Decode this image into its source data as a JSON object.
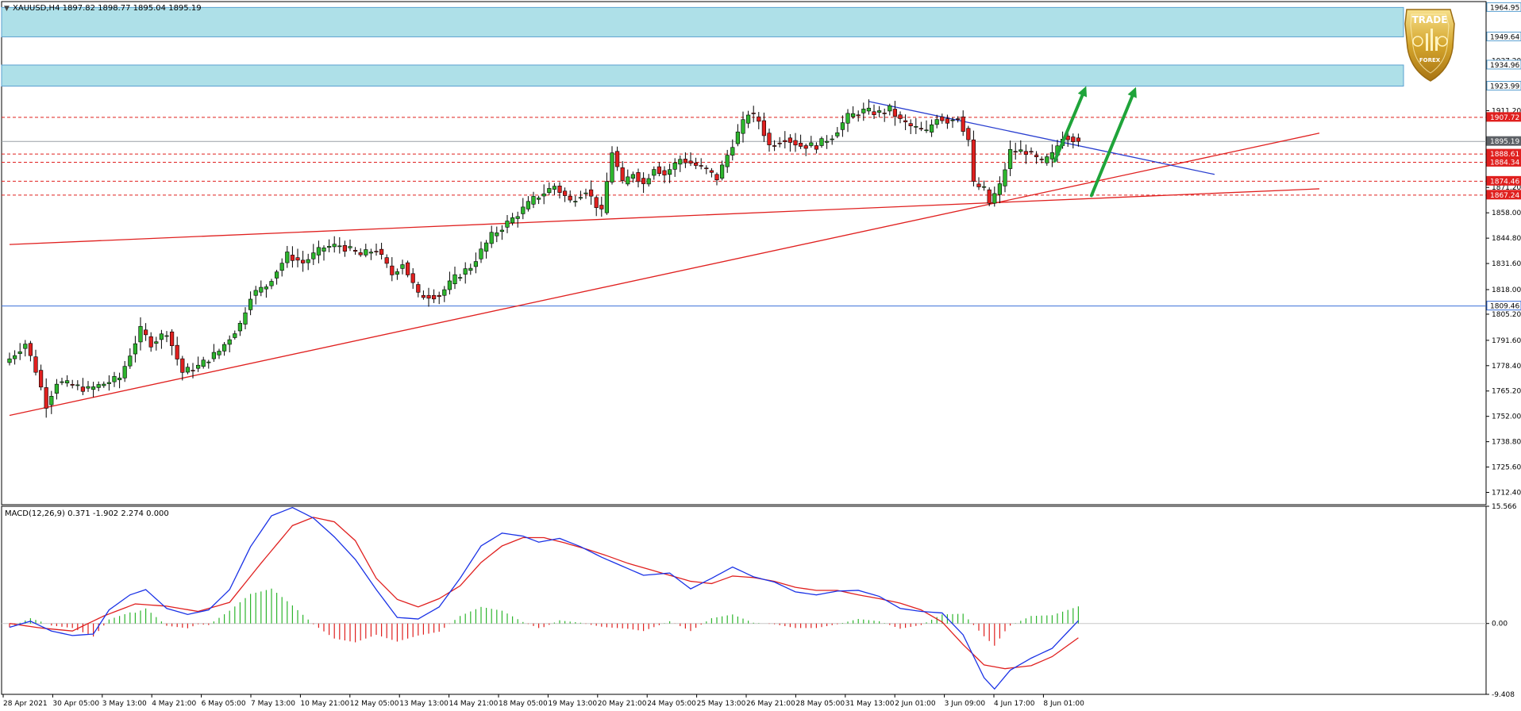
{
  "header": {
    "symbol_line": "XAUUSD,H4  1897.82 1898.77 1895.04 1895.19",
    "macd_line": "MACD(12,26,9) 0.371 -1.902 2.274 0.000"
  },
  "logo": {
    "text_top": "TRADE",
    "text_bottom": "FOREX"
  },
  "colors": {
    "bull": "#2db52d",
    "bear": "#e0201f",
    "zone_fill": "#aee0e8",
    "zone_border": "#5aa0d0",
    "hline_red": "#e0201f",
    "hline_blue": "#3a6fd8",
    "trend_red": "#e0201f",
    "trend_blue": "#2a3fd0",
    "arrow": "#1fa43a",
    "macd_line": "#1a32e6",
    "signal_line": "#e0201f",
    "axis": "#000000"
  },
  "chart_data": [
    {
      "type": "candlestick",
      "title": "XAUUSD,H4",
      "ylim": [
        1706,
        1968
      ],
      "y_ticks": [
        1712.4,
        1725.6,
        1738.8,
        1752.0,
        1765.2,
        1778.4,
        1791.6,
        1805.2,
        1818.0,
        1831.6,
        1844.8,
        1858.0,
        1871.2,
        1911.2,
        1937.2
      ],
      "x_tick_labels": [
        "28 Apr 2021",
        "30 Apr 05:00",
        "3 May 13:00",
        "4 May 21:00",
        "6 May 05:00",
        "7 May 13:00",
        "10 May 21:00",
        "12 May 05:00",
        "13 May 13:00",
        "14 May 21:00",
        "18 May 05:00",
        "19 May 13:00",
        "20 May 21:00",
        "24 May 05:00",
        "25 May 13:00",
        "26 May 21:00",
        "28 May 05:00",
        "31 May 13:00",
        "2 Jun 01:00",
        "3 Jun 09:00",
        "4 Jun 17:00",
        "8 Jun 01:00"
      ],
      "series_anchor_closes": [
        [
          0,
          1782
        ],
        [
          3,
          1790
        ],
        [
          5,
          1776
        ],
        [
          7,
          1758
        ],
        [
          9,
          1770
        ],
        [
          15,
          1766
        ],
        [
          21,
          1772
        ],
        [
          25,
          1797
        ],
        [
          27,
          1790
        ],
        [
          30,
          1796
        ],
        [
          33,
          1775
        ],
        [
          36,
          1778
        ],
        [
          40,
          1786
        ],
        [
          44,
          1800
        ],
        [
          46,
          1815
        ],
        [
          49,
          1820
        ],
        [
          53,
          1836
        ],
        [
          56,
          1832
        ],
        [
          60,
          1840
        ],
        [
          63,
          1841
        ],
        [
          67,
          1836
        ],
        [
          70,
          1839
        ],
        [
          73,
          1826
        ],
        [
          75,
          1832
        ],
        [
          78,
          1815
        ],
        [
          82,
          1815
        ],
        [
          85,
          1824
        ],
        [
          88,
          1830
        ],
        [
          92,
          1846
        ],
        [
          96,
          1855
        ],
        [
          100,
          1865
        ],
        [
          104,
          1872
        ],
        [
          107,
          1864
        ],
        [
          110,
          1870
        ],
        [
          113,
          1858
        ],
        [
          115,
          1890
        ],
        [
          117,
          1873
        ],
        [
          119,
          1879
        ],
        [
          121,
          1873
        ],
        [
          123,
          1882
        ],
        [
          125,
          1878
        ],
        [
          128,
          1886
        ],
        [
          130,
          1884
        ],
        [
          133,
          1880
        ],
        [
          135,
          1876
        ],
        [
          138,
          1894
        ],
        [
          141,
          1910
        ],
        [
          143,
          1906
        ],
        [
          145,
          1893
        ],
        [
          148,
          1897
        ],
        [
          151,
          1893
        ],
        [
          154,
          1893
        ],
        [
          157,
          1898
        ],
        [
          160,
          1908
        ],
        [
          163,
          1911
        ],
        [
          166,
          1910
        ],
        [
          168,
          1912
        ],
        [
          170,
          1906
        ],
        [
          172,
          1903
        ],
        [
          175,
          1900
        ],
        [
          177,
          1908
        ],
        [
          179,
          1906
        ],
        [
          181,
          1908
        ],
        [
          183,
          1896
        ],
        [
          184,
          1873
        ],
        [
          186,
          1870
        ],
        [
          187,
          1863
        ],
        [
          189,
          1872
        ],
        [
          191,
          1890
        ],
        [
          194,
          1890
        ],
        [
          197,
          1884
        ],
        [
          199,
          1888
        ],
        [
          201,
          1898
        ],
        [
          203,
          1897
        ],
        [
          204,
          1895.19
        ]
      ],
      "horizontal_levels": [
        {
          "value": 1907.72,
          "style": "dashed",
          "color": "red"
        },
        {
          "value": 1895.19,
          "style": "solid",
          "color": "gray",
          "label": "current"
        },
        {
          "value": 1888.61,
          "style": "dashed",
          "color": "red"
        },
        {
          "value": 1884.34,
          "style": "dashed",
          "color": "red"
        },
        {
          "value": 1874.46,
          "style": "dashed",
          "color": "red"
        },
        {
          "value": 1867.24,
          "style": "dashed",
          "color": "red"
        },
        {
          "value": 1809.46,
          "style": "solid",
          "color": "blue"
        }
      ],
      "price_tags": [
        {
          "value": 1964.95,
          "text": "1964.95",
          "kind": "zone"
        },
        {
          "value": 1949.64,
          "text": "1949.64",
          "kind": "zone"
        },
        {
          "value": 1934.96,
          "text": "1934.96",
          "kind": "zone"
        },
        {
          "value": 1923.99,
          "text": "1923.99",
          "kind": "zone"
        },
        {
          "value": 1907.72,
          "text": "1907.72",
          "kind": "red"
        },
        {
          "value": 1895.19,
          "text": "1895.19",
          "kind": "current"
        },
        {
          "value": 1888.61,
          "text": "1888.61",
          "kind": "red"
        },
        {
          "value": 1884.34,
          "text": "1884.34",
          "kind": "red"
        },
        {
          "value": 1874.46,
          "text": "1874.46",
          "kind": "red"
        },
        {
          "value": 1867.24,
          "text": "1867.24",
          "kind": "red"
        },
        {
          "value": 1809.46,
          "text": "1809.46",
          "kind": "blue"
        }
      ],
      "resistance_zones": [
        {
          "top": 1964.95,
          "bottom": 1949.64
        },
        {
          "top": 1934.96,
          "bottom": 1923.99
        }
      ],
      "trendlines": [
        {
          "color": "red",
          "from": [
            0,
            1752.5
          ],
          "to": [
            250,
            1899.5
          ]
        },
        {
          "color": "red",
          "from": [
            0,
            1841.5
          ],
          "to": [
            250,
            1870.5
          ]
        },
        {
          "color": "blue",
          "from": [
            164,
            1916
          ],
          "to": [
            230,
            1878
          ]
        }
      ],
      "arrows": [
        {
          "from": [
            199.5,
            1885
          ],
          "to": [
            205.5,
            1924
          ]
        },
        {
          "from": [
            206.5,
            1867
          ],
          "to": [
            215,
            1923.5
          ]
        }
      ]
    },
    {
      "type": "macd",
      "title": "MACD(12,26,9)",
      "params": [
        12,
        26,
        9
      ],
      "values_shown": {
        "macd": 0.371,
        "signal": -1.902,
        "histogram": 2.274,
        "zero": 0.0
      },
      "ylim": [
        -9.408,
        15.566
      ],
      "y_ticks": [
        15.566,
        0.0,
        -9.408
      ],
      "macd_anchors": [
        [
          0,
          -0.5
        ],
        [
          4,
          0.3
        ],
        [
          8,
          -1.0
        ],
        [
          12,
          -1.6
        ],
        [
          16,
          -1.4
        ],
        [
          19,
          1.8
        ],
        [
          23,
          3.8
        ],
        [
          26,
          4.5
        ],
        [
          30,
          2.0
        ],
        [
          34,
          1.2
        ],
        [
          38,
          1.8
        ],
        [
          42,
          4.5
        ],
        [
          46,
          10.2
        ],
        [
          50,
          14.3
        ],
        [
          54,
          15.4
        ],
        [
          58,
          14.0
        ],
        [
          62,
          11.5
        ],
        [
          66,
          8.5
        ],
        [
          70,
          4.5
        ],
        [
          74,
          0.8
        ],
        [
          78,
          0.6
        ],
        [
          82,
          2.2
        ],
        [
          86,
          6.0
        ],
        [
          90,
          10.3
        ],
        [
          94,
          12.0
        ],
        [
          98,
          11.6
        ],
        [
          101,
          10.8
        ],
        [
          105,
          11.3
        ],
        [
          109,
          10.2
        ],
        [
          113,
          8.8
        ],
        [
          117,
          7.6
        ],
        [
          121,
          6.4
        ],
        [
          126,
          6.7
        ],
        [
          130,
          4.6
        ],
        [
          134,
          6.0
        ],
        [
          138,
          7.5
        ],
        [
          142,
          6.2
        ],
        [
          146,
          5.5
        ],
        [
          150,
          4.2
        ],
        [
          154,
          3.8
        ],
        [
          158,
          4.3
        ],
        [
          162,
          4.4
        ],
        [
          166,
          3.6
        ],
        [
          170,
          2.0
        ],
        [
          174,
          1.6
        ],
        [
          178,
          1.4
        ],
        [
          182,
          -1.5
        ],
        [
          186,
          -7.2
        ],
        [
          188,
          -8.7
        ],
        [
          191,
          -6.2
        ],
        [
          195,
          -4.6
        ],
        [
          199,
          -3.3
        ],
        [
          204,
          0.371
        ]
      ],
      "signal_anchors": [
        [
          0,
          0.0
        ],
        [
          6,
          -0.6
        ],
        [
          12,
          -1.0
        ],
        [
          18,
          1.0
        ],
        [
          24,
          2.6
        ],
        [
          30,
          2.3
        ],
        [
          36,
          1.6
        ],
        [
          42,
          2.8
        ],
        [
          48,
          8.0
        ],
        [
          54,
          13.0
        ],
        [
          58,
          14.1
        ],
        [
          62,
          13.5
        ],
        [
          66,
          11.0
        ],
        [
          70,
          6.0
        ],
        [
          74,
          3.2
        ],
        [
          78,
          2.2
        ],
        [
          82,
          3.3
        ],
        [
          86,
          5.0
        ],
        [
          90,
          8.1
        ],
        [
          94,
          10.3
        ],
        [
          98,
          11.4
        ],
        [
          102,
          11.4
        ],
        [
          106,
          10.7
        ],
        [
          110,
          9.9
        ],
        [
          114,
          9.0
        ],
        [
          118,
          8.0
        ],
        [
          122,
          7.2
        ],
        [
          126,
          6.4
        ],
        [
          130,
          5.6
        ],
        [
          134,
          5.3
        ],
        [
          138,
          6.3
        ],
        [
          142,
          6.1
        ],
        [
          146,
          5.6
        ],
        [
          150,
          4.8
        ],
        [
          154,
          4.4
        ],
        [
          158,
          4.4
        ],
        [
          162,
          3.8
        ],
        [
          166,
          3.3
        ],
        [
          170,
          2.7
        ],
        [
          174,
          1.8
        ],
        [
          178,
          0.2
        ],
        [
          182,
          -2.8
        ],
        [
          186,
          -5.5
        ],
        [
          190,
          -6.0
        ],
        [
          195,
          -5.6
        ],
        [
          199,
          -4.4
        ],
        [
          204,
          -1.902
        ]
      ]
    }
  ]
}
